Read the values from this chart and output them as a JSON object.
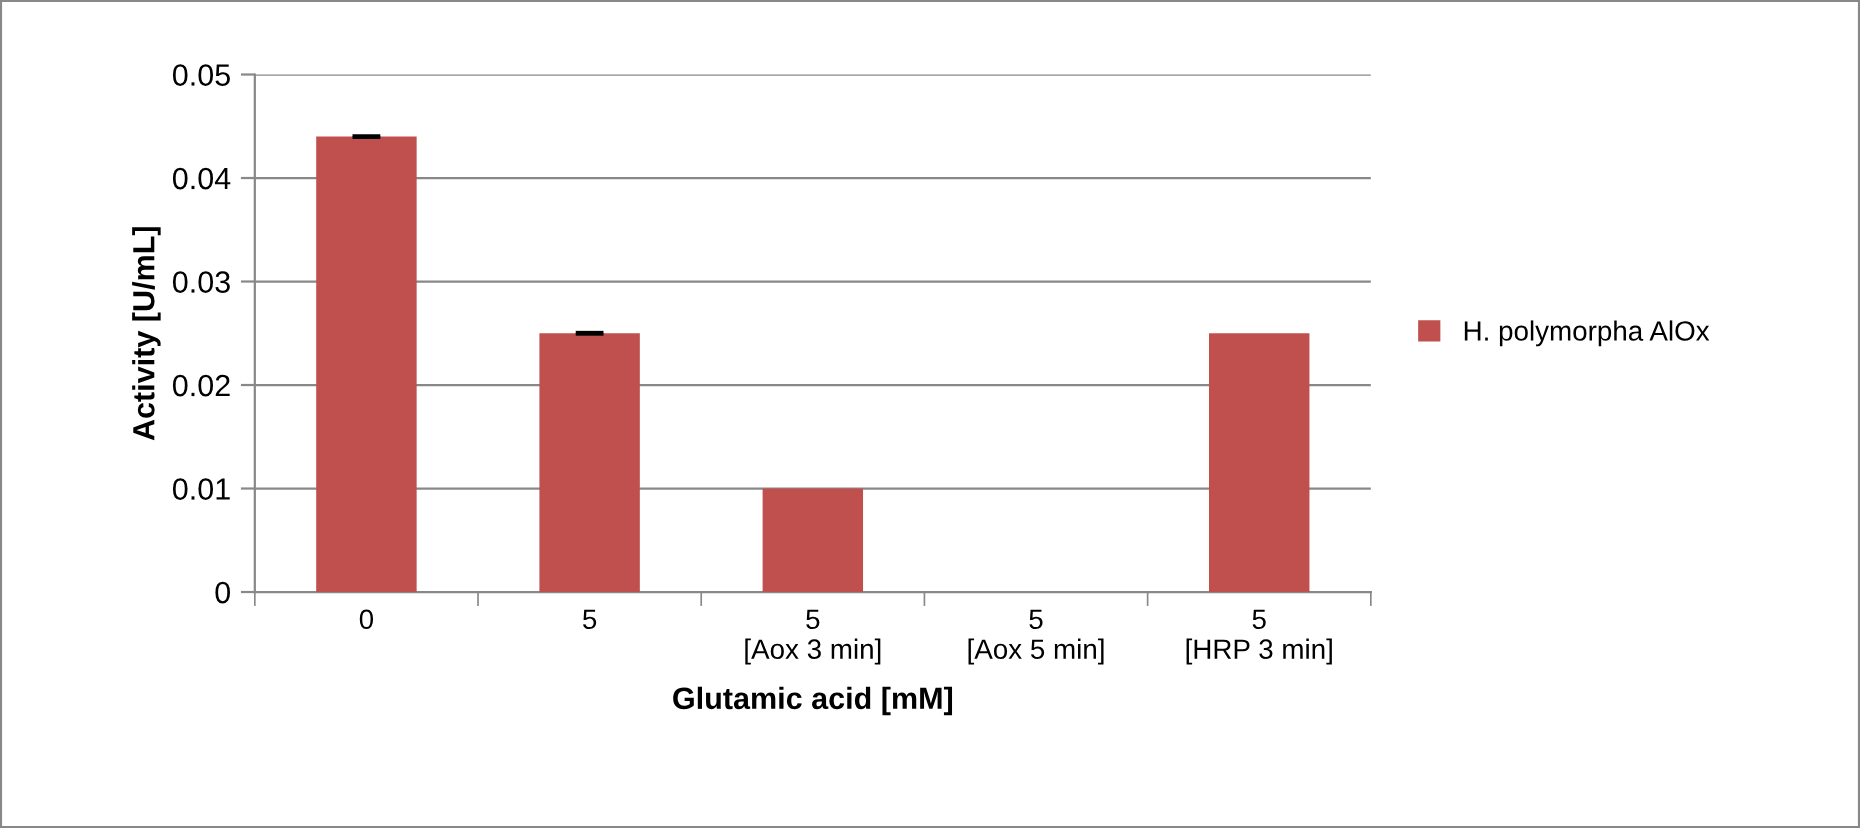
{
  "chart_data": {
    "type": "bar",
    "xlabel": "Glutamic acid [mM]",
    "ylabel": "Activity [U/mL]",
    "categories": [
      "0",
      "5",
      "5\n[Aox 3 min]",
      "5\n[Aox 5 min]",
      "5\n[HRP 3 min]"
    ],
    "series": [
      {
        "name": "H. polymorpha AlOx",
        "color": "#c0504d",
        "values": [
          0.044,
          0.025,
          0.01,
          0,
          0.025
        ],
        "errors": [
          0.0001,
          0.0001,
          null,
          null,
          null
        ]
      }
    ],
    "ylim": [
      0,
      0.05
    ],
    "yticks": [
      0,
      0.01,
      0.02,
      0.03,
      0.04,
      0.05
    ],
    "grid": "y",
    "legend": "right"
  }
}
